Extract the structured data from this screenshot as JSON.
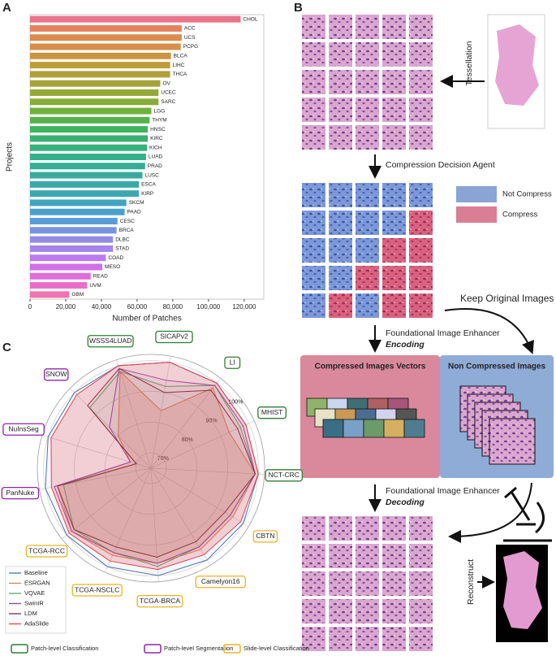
{
  "chart_data": [
    {
      "type": "barh",
      "panel": "A",
      "xlabel": "Number of Patches",
      "ylabel": "Projects",
      "categories": [
        "CHOL",
        "ACC",
        "UCS",
        "PCPG",
        "BLCA",
        "LIHC",
        "THCA",
        "OV",
        "UCEC",
        "SARC",
        "LGG",
        "THYM",
        "HNSC",
        "KIRC",
        "KICH",
        "LUAD",
        "PRAD",
        "LUSC",
        "ESCA",
        "KIRP",
        "SKCM",
        "PAAD",
        "CESC",
        "BRCA",
        "DLBC",
        "STAD",
        "COAD",
        "MESO",
        "READ",
        "UVM",
        "GBM"
      ],
      "values": [
        118000,
        85000,
        85000,
        84500,
        79000,
        78500,
        78500,
        73000,
        72000,
        72000,
        68000,
        67000,
        66000,
        66000,
        65500,
        65000,
        64500,
        63000,
        61000,
        61000,
        54000,
        53000,
        49000,
        48500,
        46500,
        46500,
        42500,
        40500,
        34000,
        32000,
        22000
      ],
      "colors": [
        "#e8738a",
        "#e5825e",
        "#dc8a4e",
        "#d6904a",
        "#c9963f",
        "#bd9c3a",
        "#b0a038",
        "#a3a536",
        "#96a936",
        "#87ad38",
        "#6fb13d",
        "#52b34a",
        "#3fb35e",
        "#38b170",
        "#36b07e",
        "#35ae8a",
        "#36ad95",
        "#38ab9f",
        "#3aa9a9",
        "#3ca7b3",
        "#41a4c0",
        "#4aa0cc",
        "#5a9bd8",
        "#7a93e0",
        "#928ce6",
        "#a585ec",
        "#bb7bee",
        "#d070ea",
        "#e06ddc",
        "#e96fc8",
        "#ef74b0"
      ],
      "xlim": [
        0,
        131000
      ],
      "xticks": [
        0,
        {
          "value": 20000,
          "label": "20,000"
        },
        {
          "value": 40000,
          "label": "40,000"
        },
        {
          "value": 60000,
          "label": "60,000"
        },
        {
          "value": 80000,
          "label": "80,000"
        },
        {
          "value": 100000,
          "label": "100,000"
        },
        {
          "value": 120000,
          "label": "120,000"
        }
      ]
    },
    {
      "type": "radar",
      "panel": "C",
      "categories": [
        "SICAPv2",
        "LI",
        "MHIST",
        "NCT-CRC",
        "CBTN",
        "Camelyon16",
        "TCGA-BRCA",
        "TCGA-NSCLC",
        "TCGA-RCC",
        "PanNuke",
        "NuInsSeg",
        "SNOW",
        "WSSS4LUAD"
      ],
      "category_groups": [
        0,
        0,
        0,
        0,
        2,
        2,
        2,
        2,
        2,
        1,
        1,
        1,
        0
      ],
      "groups": [
        {
          "name": "Patch-level Classification",
          "color": "#2e7d32"
        },
        {
          "name": "Patch-level Segmentation",
          "color": "#8e24aa"
        },
        {
          "name": "Slide-level Classification",
          "color": "#e6b422"
        }
      ],
      "rlim": [
        65,
        102
      ],
      "rticks": [
        {
          "value": 70,
          "label": "70%"
        },
        {
          "value": 80,
          "label": "80%"
        },
        {
          "value": 90,
          "label": "90%"
        },
        {
          "value": 100,
          "label": "100%"
        }
      ],
      "series": [
        {
          "name": "Baseline",
          "color": "#4c72b0",
          "values": [
            100,
            100,
            99,
            100,
            100,
            100,
            100,
            100,
            100,
            100,
            100,
            100,
            100
          ]
        },
        {
          "name": "ESRGAN",
          "color": "#dd8452",
          "values": [
            84,
            98,
            93,
            99,
            96,
            96,
            96,
            96,
            98,
            96,
            72,
            80,
            98
          ]
        },
        {
          "name": "VQVAE",
          "color": "#55a868",
          "values": [
            92,
            99,
            97,
            99,
            95,
            95,
            97,
            95,
            97,
            94,
            70,
            93,
            98
          ]
        },
        {
          "name": "SwinIR",
          "color": "#8e44ad",
          "values": [
            94,
            99,
            98,
            99,
            95,
            95,
            96,
            95,
            98,
            97,
            72,
            84,
            99
          ]
        },
        {
          "name": "LDM",
          "color": "#7b2d3b",
          "values": [
            90,
            97,
            96,
            99,
            93,
            93,
            94,
            93,
            97,
            96,
            70,
            94,
            99
          ]
        },
        {
          "name": "AdaSlide",
          "color": "#e0404e",
          "values": [
            100,
            100,
            99,
            100,
            99,
            98,
            98,
            98,
            99,
            98,
            99,
            99,
            100
          ]
        }
      ]
    }
  ],
  "diagram": {
    "panel": "B",
    "tessellation": "Tessellation",
    "agent": "Compression Decision Agent",
    "not_compress": "Not Compress",
    "compress": "Compress",
    "keep": "Keep Original Images",
    "enhancer_encode": "Foundational Image Enhancer",
    "encoding": "Encoding",
    "compressed_title": "Compressed Images Vectors",
    "noncompressed_title": "Non Compressed Images",
    "enhancer_decode": "Foundational Image Enhancer",
    "decoding": "Decoding",
    "reconstruct": "Reconstruct"
  }
}
